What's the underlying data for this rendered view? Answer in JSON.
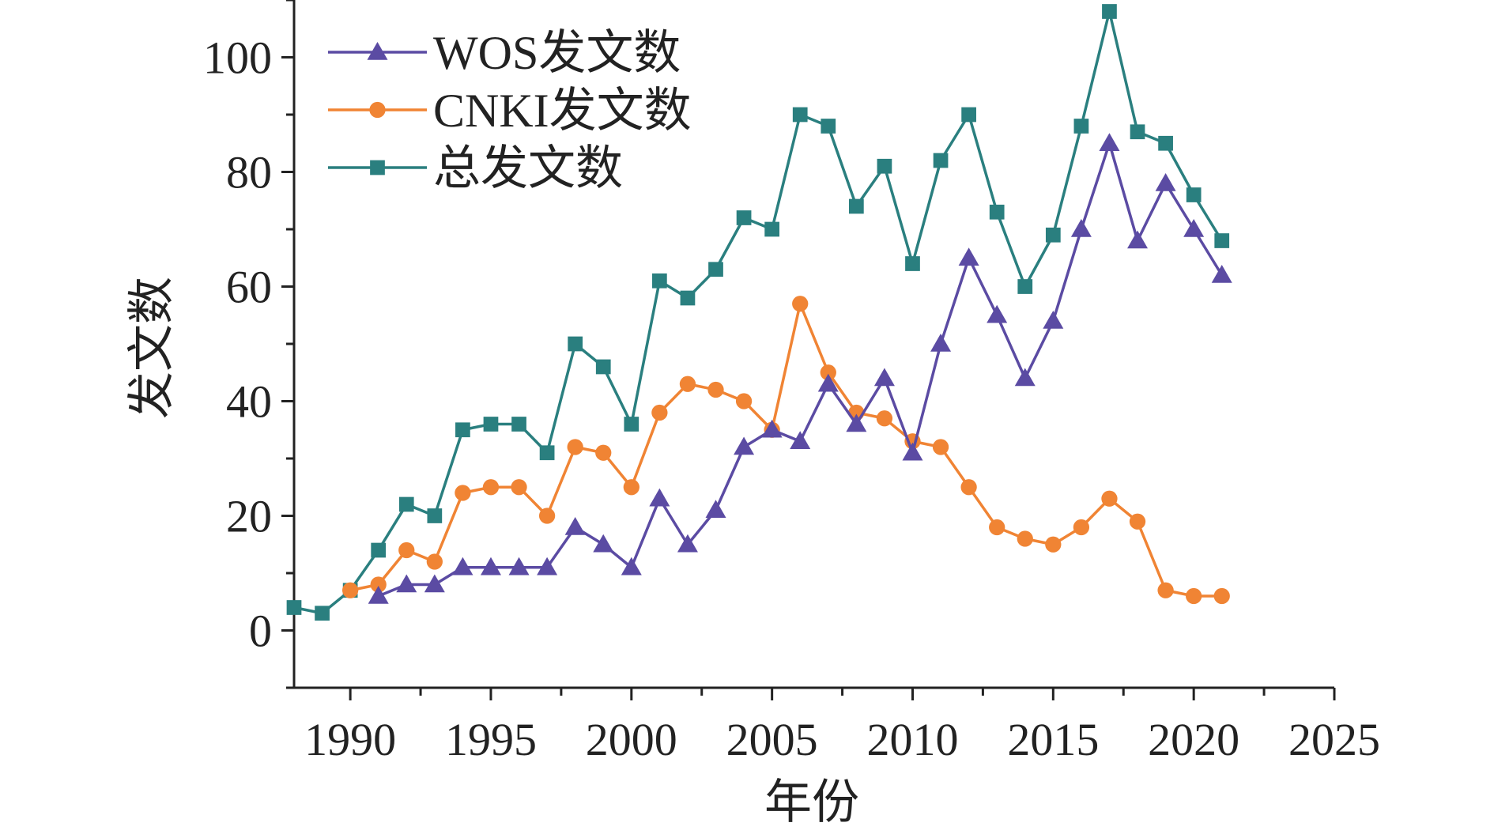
{
  "chart_data": {
    "type": "line",
    "title": "",
    "xlabel": "年份",
    "ylabel": "发文数",
    "xlim": [
      1988,
      2025
    ],
    "ylim": [
      -10,
      110
    ],
    "xticks": [
      1990,
      1995,
      2000,
      2005,
      2010,
      2015,
      2020,
      2025
    ],
    "yticks": [
      0,
      20,
      40,
      60,
      80,
      100
    ],
    "legend_position": "top-left",
    "grid": false,
    "series": [
      {
        "name": "WOS发文数",
        "color": "#5b4ba3",
        "marker": "triangle",
        "points": [
          [
            1991,
            6
          ],
          [
            1992,
            8
          ],
          [
            1993,
            8
          ],
          [
            1994,
            11
          ],
          [
            1995,
            11
          ],
          [
            1996,
            11
          ],
          [
            1997,
            11
          ],
          [
            1998,
            18
          ],
          [
            1999,
            15
          ],
          [
            2000,
            11
          ],
          [
            2001,
            23
          ],
          [
            2002,
            15
          ],
          [
            2003,
            21
          ],
          [
            2004,
            32
          ],
          [
            2005,
            35
          ],
          [
            2006,
            33
          ],
          [
            2007,
            43
          ],
          [
            2008,
            36
          ],
          [
            2009,
            44
          ],
          [
            2010,
            31
          ],
          [
            2011,
            50
          ],
          [
            2012,
            65
          ],
          [
            2013,
            55
          ],
          [
            2014,
            44
          ],
          [
            2015,
            54
          ],
          [
            2016,
            70
          ],
          [
            2017,
            85
          ],
          [
            2018,
            68
          ],
          [
            2019,
            78
          ],
          [
            2020,
            70
          ],
          [
            2021,
            62
          ]
        ]
      },
      {
        "name": "CNKI发文数",
        "color": "#f08434",
        "marker": "circle",
        "points": [
          [
            1990,
            7
          ],
          [
            1991,
            8
          ],
          [
            1992,
            14
          ],
          [
            1993,
            12
          ],
          [
            1994,
            24
          ],
          [
            1995,
            25
          ],
          [
            1996,
            25
          ],
          [
            1997,
            20
          ],
          [
            1998,
            32
          ],
          [
            1999,
            31
          ],
          [
            2000,
            25
          ],
          [
            2001,
            38
          ],
          [
            2002,
            43
          ],
          [
            2003,
            42
          ],
          [
            2004,
            40
          ],
          [
            2005,
            35
          ],
          [
            2006,
            57
          ],
          [
            2007,
            45
          ],
          [
            2008,
            38
          ],
          [
            2009,
            37
          ],
          [
            2010,
            33
          ],
          [
            2011,
            32
          ],
          [
            2012,
            25
          ],
          [
            2013,
            18
          ],
          [
            2014,
            16
          ],
          [
            2015,
            15
          ],
          [
            2016,
            18
          ],
          [
            2017,
            23
          ],
          [
            2018,
            19
          ],
          [
            2019,
            7
          ],
          [
            2020,
            6
          ],
          [
            2021,
            6
          ]
        ]
      },
      {
        "name": "总发文数",
        "color": "#2a7f7f",
        "marker": "square",
        "points": [
          [
            1988,
            4
          ],
          [
            1989,
            3
          ],
          [
            1990,
            7
          ],
          [
            1991,
            14
          ],
          [
            1992,
            22
          ],
          [
            1993,
            20
          ],
          [
            1994,
            35
          ],
          [
            1995,
            36
          ],
          [
            1996,
            36
          ],
          [
            1997,
            31
          ],
          [
            1998,
            50
          ],
          [
            1999,
            46
          ],
          [
            2000,
            36
          ],
          [
            2001,
            61
          ],
          [
            2002,
            58
          ],
          [
            2003,
            63
          ],
          [
            2004,
            72
          ],
          [
            2005,
            70
          ],
          [
            2006,
            90
          ],
          [
            2007,
            88
          ],
          [
            2008,
            74
          ],
          [
            2009,
            81
          ],
          [
            2010,
            64
          ],
          [
            2011,
            82
          ],
          [
            2012,
            90
          ],
          [
            2013,
            73
          ],
          [
            2014,
            60
          ],
          [
            2015,
            69
          ],
          [
            2016,
            88
          ],
          [
            2017,
            108
          ],
          [
            2018,
            87
          ],
          [
            2019,
            85
          ],
          [
            2020,
            76
          ],
          [
            2021,
            68
          ]
        ]
      }
    ]
  }
}
